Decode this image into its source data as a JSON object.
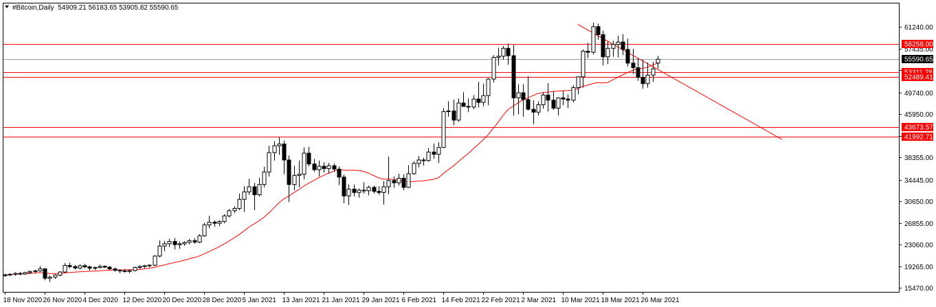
{
  "header": {
    "symbol_line": "#Bitcoin,Daily  54909.21 56183.65 53905.82 55590.65"
  },
  "chart_data": {
    "type": "candlestick",
    "symbol": "#Bitcoin,Daily",
    "ohlc_summary": {
      "open": 54909.21,
      "high": 56183.65,
      "low": 53905.82,
      "close": 55590.65
    },
    "x_ticks": [
      "18 Nov 2020",
      "26 Nov 2020",
      "4 Dec 2020",
      "12 Dec 2020",
      "20 Dec 2020",
      "28 Dec 2020",
      "5 Jan 2021",
      "13 Jan 2021",
      "21 Jan 2021",
      "29 Jan 2021",
      "6 Feb 2021",
      "14 Feb 2021",
      "22 Feb 2021",
      "2 Mar 2021",
      "10 Mar 2021",
      "18 Mar 2021",
      "26 Mar 2021"
    ],
    "y_ticks": [
      "61240.00",
      "57435.00",
      "53640.00",
      "49740.00",
      "45950.00",
      "42150.00",
      "38355.00",
      "34445.00",
      "30650.00",
      "26855.00",
      "23060.00",
      "19265.00",
      "15470.00"
    ],
    "ylim": [
      15000,
      62600
    ],
    "levels": [
      {
        "label": "58258.00",
        "value": 58258.0
      },
      {
        "label": "53311.28",
        "value": 53311.28
      },
      {
        "label": "52489.41",
        "value": 52489.41
      },
      {
        "label": "43673.57",
        "value": 43673.57
      },
      {
        "label": "41992.71",
        "value": 41992.71
      }
    ],
    "current_price": {
      "label": "55590.65",
      "value": 55590.65
    },
    "trendline": {
      "start_index": 115,
      "start_value": 61700,
      "end_index": 156,
      "end_value": 41500
    },
    "moving_average_period": 20,
    "colors": {
      "levels": "#ff0000",
      "ma": "#ff0000",
      "trend": "#ff0000",
      "current": "#000000"
    },
    "candles": [
      [
        17600,
        17950,
        17400,
        17750
      ],
      [
        17750,
        18050,
        17550,
        17850
      ],
      [
        17850,
        18200,
        17600,
        18000
      ],
      [
        18000,
        18250,
        17700,
        17900
      ],
      [
        17900,
        18300,
        17750,
        18150
      ],
      [
        18150,
        18500,
        17900,
        18350
      ],
      [
        18350,
        18650,
        18050,
        18450
      ],
      [
        18450,
        19300,
        18300,
        18800
      ],
      [
        18800,
        18950,
        16800,
        17150
      ],
      [
        17150,
        17600,
        16500,
        17350
      ],
      [
        17350,
        17850,
        17050,
        17700
      ],
      [
        17700,
        18400,
        17500,
        18250
      ],
      [
        18250,
        19800,
        18050,
        19400
      ],
      [
        19400,
        19900,
        18900,
        19200
      ],
      [
        19200,
        19500,
        18700,
        18950
      ],
      [
        18950,
        19600,
        18700,
        19350
      ],
      [
        19350,
        19700,
        18900,
        19150
      ],
      [
        19150,
        19350,
        18500,
        18900
      ],
      [
        18900,
        19200,
        18600,
        19050
      ],
      [
        19050,
        19500,
        18850,
        19250
      ],
      [
        19250,
        19400,
        18950,
        19100
      ],
      [
        19100,
        19300,
        18650,
        18800
      ],
      [
        18800,
        19000,
        18300,
        18550
      ],
      [
        18550,
        18750,
        18050,
        18450
      ],
      [
        18450,
        18800,
        18150,
        18350
      ],
      [
        18350,
        18650,
        18050,
        18500
      ],
      [
        18500,
        19200,
        18350,
        19050
      ],
      [
        19050,
        19450,
        18800,
        19200
      ],
      [
        19200,
        19500,
        18900,
        19350
      ],
      [
        19350,
        19600,
        19050,
        19450
      ],
      [
        19450,
        21200,
        19300,
        21050
      ],
      [
        21050,
        23800,
        20800,
        22800
      ],
      [
        22800,
        23700,
        21900,
        23200
      ],
      [
        23200,
        24100,
        22600,
        23600
      ],
      [
        23600,
        24200,
        22200,
        23050
      ],
      [
        23050,
        23600,
        22300,
        23200
      ],
      [
        23200,
        23650,
        22850,
        23450
      ],
      [
        23450,
        24050,
        23100,
        23750
      ],
      [
        23750,
        24200,
        23200,
        23500
      ],
      [
        23500,
        24900,
        23300,
        24600
      ],
      [
        24600,
        26900,
        24400,
        26500
      ],
      [
        26500,
        28100,
        25900,
        27000
      ],
      [
        27000,
        27300,
        26200,
        26800
      ],
      [
        26800,
        27350,
        26300,
        27100
      ],
      [
        27100,
        28400,
        26800,
        28100
      ],
      [
        28100,
        29300,
        27800,
        29000
      ],
      [
        29000,
        29800,
        28600,
        29400
      ],
      [
        29400,
        32000,
        29100,
        31000
      ],
      [
        31000,
        33300,
        28800,
        32300
      ],
      [
        32300,
        34600,
        31800,
        33200
      ],
      [
        33200,
        33900,
        29100,
        31800
      ],
      [
        31800,
        34800,
        31500,
        33600
      ],
      [
        33600,
        36700,
        33100,
        35800
      ],
      [
        35800,
        40400,
        35000,
        39200
      ],
      [
        39200,
        41200,
        37800,
        40400
      ],
      [
        40400,
        41950,
        38800,
        40700
      ],
      [
        40700,
        41300,
        35400,
        37900
      ],
      [
        37900,
        38700,
        30500,
        33600
      ],
      [
        33600,
        36900,
        32600,
        35200
      ],
      [
        35200,
        37800,
        33100,
        35400
      ],
      [
        35400,
        40100,
        34500,
        39100
      ],
      [
        39100,
        40200,
        36800,
        37200
      ],
      [
        37200,
        38100,
        35800,
        36200
      ],
      [
        36200,
        37800,
        35000,
        36800
      ],
      [
        36800,
        37500,
        35700,
        36400
      ],
      [
        36400,
        37400,
        35500,
        36900
      ],
      [
        36900,
        37300,
        35800,
        36300
      ],
      [
        36300,
        36800,
        33500,
        34900
      ],
      [
        34900,
        35300,
        30300,
        31600
      ],
      [
        31600,
        33600,
        30000,
        32800
      ],
      [
        32800,
        33600,
        31500,
        32200
      ],
      [
        32200,
        32900,
        31300,
        32600
      ],
      [
        32600,
        34000,
        32000,
        32500
      ],
      [
        32500,
        33400,
        31700,
        33100
      ],
      [
        33100,
        33400,
        32000,
        32400
      ],
      [
        32400,
        33300,
        31800,
        32200
      ],
      [
        32200,
        34200,
        30100,
        33200
      ],
      [
        33200,
        38500,
        31900,
        34300
      ],
      [
        34300,
        35000,
        33000,
        33900
      ],
      [
        33900,
        35500,
        33400,
        34700
      ],
      [
        34700,
        35400,
        32600,
        33100
      ],
      [
        33100,
        37000,
        33000,
        35500
      ],
      [
        35500,
        37700,
        35300,
        37300
      ],
      [
        37300,
        38600,
        36600,
        37900
      ],
      [
        37900,
        38300,
        36900,
        37800
      ],
      [
        37800,
        40000,
        37600,
        39300
      ],
      [
        39300,
        40800,
        38100,
        38900
      ],
      [
        38900,
        41000,
        37400,
        40100
      ],
      [
        40100,
        47000,
        40000,
        46400
      ],
      [
        46400,
        48200,
        45500,
        46500
      ],
      [
        46500,
        48500,
        44000,
        44900
      ],
      [
        44900,
        48700,
        44600,
        47900
      ],
      [
        47900,
        49800,
        47400,
        47300
      ],
      [
        47300,
        48700,
        46300,
        47200
      ],
      [
        47200,
        49300,
        46800,
        48600
      ],
      [
        48600,
        51600,
        47100,
        48000
      ],
      [
        48000,
        51300,
        47300,
        49200
      ],
      [
        49200,
        52300,
        47500,
        52100
      ],
      [
        52100,
        56300,
        51500,
        55900
      ],
      [
        55900,
        57600,
        54500,
        56100
      ],
      [
        56100,
        57900,
        55500,
        57500
      ],
      [
        57500,
        58300,
        54600,
        56200
      ],
      [
        56200,
        58100,
        45700,
        48800
      ],
      [
        48800,
        51200,
        45900,
        49700
      ],
      [
        49700,
        51200,
        45500,
        48500
      ],
      [
        48500,
        52600,
        46600,
        46800
      ],
      [
        46800,
        48400,
        44200,
        46300
      ],
      [
        46300,
        48200,
        45700,
        47600
      ],
      [
        47600,
        49800,
        46900,
        49300
      ],
      [
        49300,
        51400,
        46400,
        48400
      ],
      [
        48400,
        50000,
        46700,
        47000
      ],
      [
        47000,
        48800,
        45700,
        48800
      ],
      [
        48800,
        50100,
        47500,
        48600
      ],
      [
        48600,
        49400,
        47000,
        48400
      ],
      [
        48400,
        51000,
        48000,
        50600
      ],
      [
        50600,
        52600,
        49400,
        52500
      ],
      [
        52500,
        57300,
        50600,
        57000
      ],
      [
        57000,
        58500,
        55800,
        56800
      ],
      [
        56800,
        62000,
        56400,
        61300
      ],
      [
        61300,
        61800,
        59000,
        59900
      ],
      [
        59900,
        60600,
        54500,
        56000
      ],
      [
        56000,
        58700,
        54700,
        57500
      ],
      [
        57500,
        58800,
        56000,
        58200
      ],
      [
        58200,
        59700,
        55900,
        58600
      ],
      [
        58600,
        60000,
        56300,
        57300
      ],
      [
        57300,
        59200,
        54300,
        54900
      ],
      [
        54900,
        57400,
        53000,
        54100
      ],
      [
        54100,
        55800,
        51800,
        52400
      ],
      [
        52400,
        55500,
        50400,
        51300
      ],
      [
        51300,
        55000,
        50600,
        52800
      ],
      [
        52800,
        55100,
        51600,
        53900
      ],
      [
        54909.21,
        56183.65,
        53905.82,
        55590.65
      ]
    ]
  }
}
